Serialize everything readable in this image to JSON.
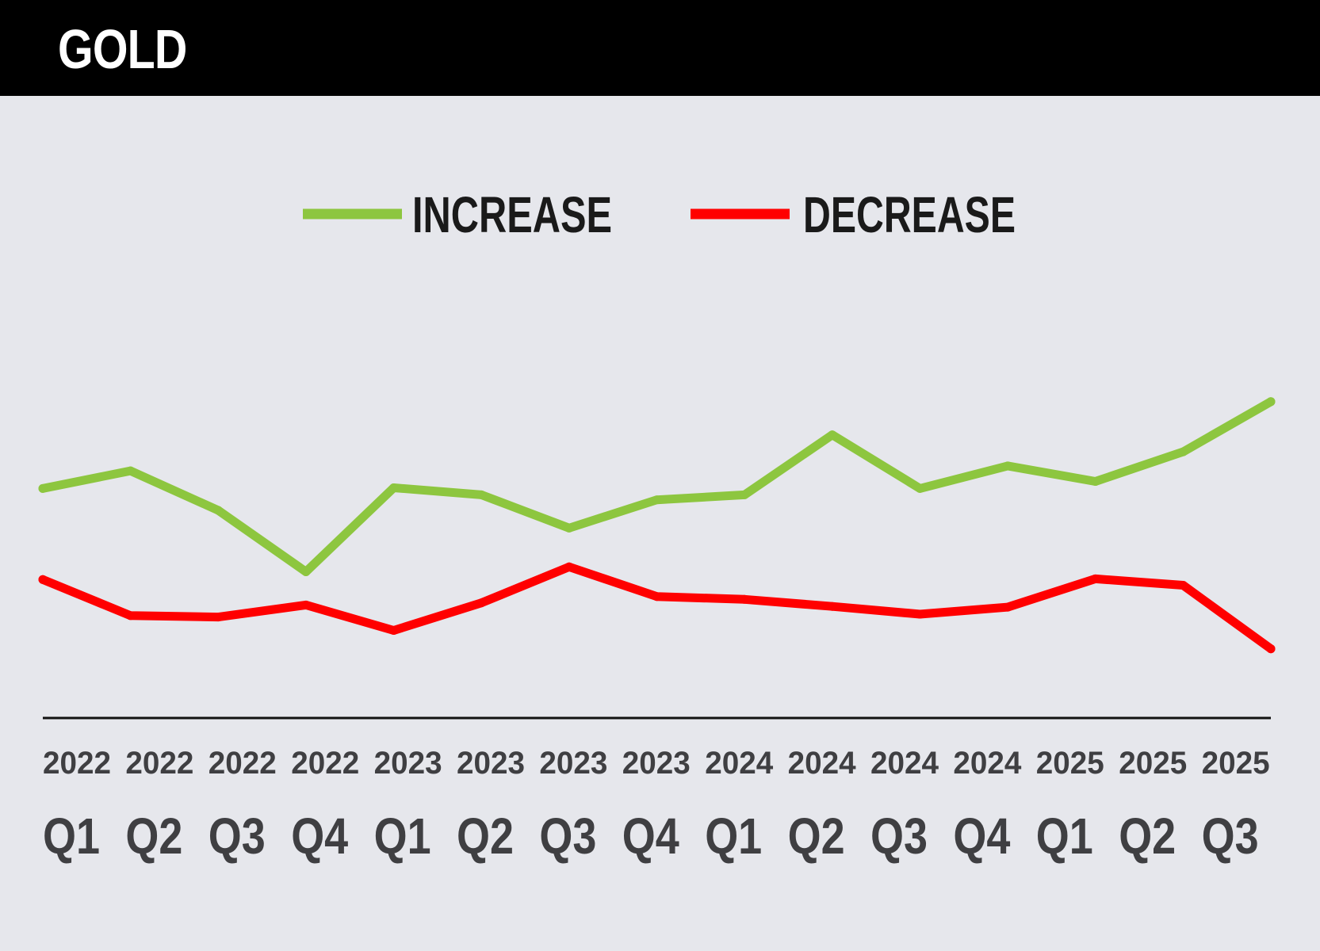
{
  "header": {
    "title": "GOLD"
  },
  "chart_data": {
    "type": "line",
    "title": "GOLD",
    "categories": [
      {
        "year": "2022",
        "quarter": "Q1"
      },
      {
        "year": "2022",
        "quarter": "Q2"
      },
      {
        "year": "2022",
        "quarter": "Q3"
      },
      {
        "year": "2022",
        "quarter": "Q4"
      },
      {
        "year": "2023",
        "quarter": "Q1"
      },
      {
        "year": "2023",
        "quarter": "Q2"
      },
      {
        "year": "2023",
        "quarter": "Q3"
      },
      {
        "year": "2023",
        "quarter": "Q4"
      },
      {
        "year": "2024",
        "quarter": "Q1"
      },
      {
        "year": "2024",
        "quarter": "Q2"
      },
      {
        "year": "2024",
        "quarter": "Q3"
      },
      {
        "year": "2024",
        "quarter": "Q4"
      },
      {
        "year": "2025",
        "quarter": "Q1"
      },
      {
        "year": "2025",
        "quarter": "Q2"
      },
      {
        "year": "2025",
        "quarter": "Q3"
      }
    ],
    "series": [
      {
        "name": "INCREASE",
        "color": "#8dc63f",
        "values": [
          44.4,
          46.9,
          41.3,
          32.6,
          44.5,
          43.5,
          38.8,
          42.8,
          43.5,
          52.0,
          44.4,
          47.6,
          45.4,
          49.6,
          56.7
        ]
      },
      {
        "name": "DECREASE",
        "color": "#ff0000",
        "values": [
          31.5,
          26.4,
          26.2,
          27.9,
          24.3,
          28.2,
          33.3,
          29.1,
          28.7,
          27.7,
          26.6,
          27.6,
          31.6,
          30.7,
          21.7
        ]
      }
    ],
    "ylim": [
      0,
      100
    ],
    "grid": false,
    "legend": "top-center",
    "xlabel": "",
    "ylabel": ""
  }
}
